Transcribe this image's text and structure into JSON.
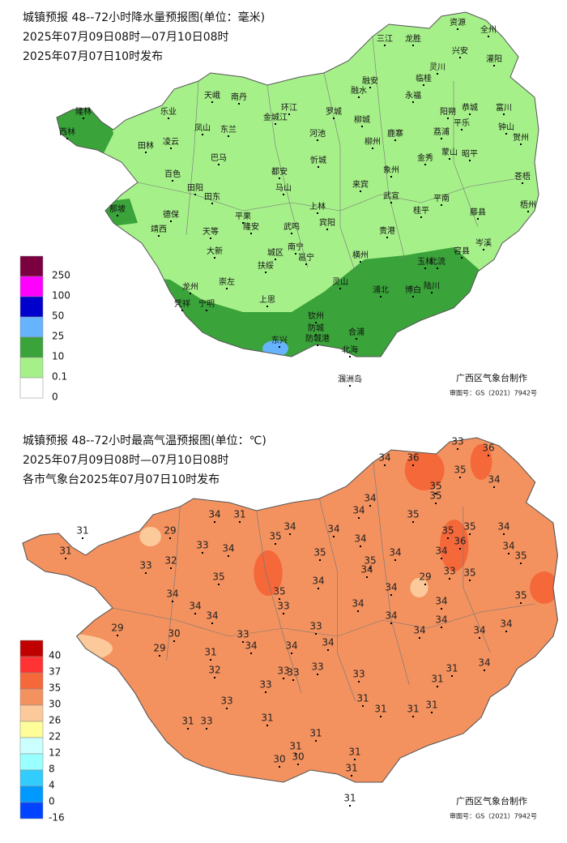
{
  "precip_map": {
    "title_lines": [
      "城镇预报 48--72小时降水量预报图(单位：毫米)",
      "2025年07月09日08时—07月10日08时",
      "2025年07月07日10时发布"
    ],
    "legend": [
      {
        "value": 250,
        "color": "#7a0040"
      },
      {
        "value": 100,
        "color": "#ff00ff"
      },
      {
        "value": 50,
        "color": "#0000cc"
      },
      {
        "value": 25,
        "color": "#66b3ff"
      },
      {
        "value": 10,
        "color": "#3aa33a"
      },
      {
        "value": 0.1,
        "color": "#a6f08a"
      },
      {
        "value": 0,
        "color": "#ffffff"
      }
    ],
    "cities": [
      "三江",
      "龙胜",
      "资源",
      "全州",
      "兴安",
      "灌阳",
      "灵川",
      "临桂",
      "融安",
      "融水",
      "永福",
      "罗城",
      "环江",
      "南丹",
      "天峨",
      "乐业",
      "隆林",
      "西林",
      "凤山",
      "东兰",
      "金城江",
      "河池",
      "柳城",
      "阳朔",
      "恭城",
      "富川",
      "平乐",
      "钟山",
      "贺州",
      "荔浦",
      "鹿寨",
      "柳州",
      "田林",
      "凌云",
      "巴马",
      "忻城",
      "象州",
      "金秀",
      "蒙山",
      "昭平",
      "百色",
      "都安",
      "马山",
      "来宾",
      "武宣",
      "平南",
      "藤县",
      "苍梧",
      "梧州",
      "田阳",
      "田东",
      "上林",
      "宾阳",
      "桂平",
      "那坡",
      "德保",
      "靖西",
      "平果",
      "隆安",
      "武鸣",
      "贵港",
      "岑溪",
      "天等",
      "大新",
      "南宁",
      "横州",
      "容县",
      "北流",
      "玉林",
      "邕宁",
      "扶绥",
      "城区",
      "崇左",
      "灵山",
      "浦北",
      "博白",
      "陆川",
      "龙州",
      "凭祥",
      "宁明",
      "上思",
      "钦州",
      "防城",
      "东兴",
      "防城港",
      "合浦",
      "北海",
      "涠洲岛"
    ],
    "credit": "广西区气象台制作",
    "approval": "审图号：GS（2021）7942号"
  },
  "temperature_map": {
    "title_lines": [
      "城镇预报 48--72小时最高气温预报图(单位：℃)",
      "2025年07月09日08时—07月10日08时",
      "各市气象台2025年07月07日10时发布"
    ],
    "legend": [
      {
        "value": 40,
        "color": "#c00000"
      },
      {
        "value": 37,
        "color": "#ff3333"
      },
      {
        "value": 35,
        "color": "#f4683a"
      },
      {
        "value": 30,
        "color": "#f4925f"
      },
      {
        "value": 26,
        "color": "#fcc99a"
      },
      {
        "value": 22,
        "color": "#fdfd99"
      },
      {
        "value": 12,
        "color": "#ccffff"
      },
      {
        "value": 8,
        "color": "#99ffff"
      },
      {
        "value": 4,
        "color": "#33ccff"
      },
      {
        "value": 0,
        "color": "#0099ff"
      },
      {
        "value": -16,
        "color": "#0044ff"
      }
    ],
    "labels": [
      33,
      36,
      34,
      36,
      35,
      34,
      35,
      35,
      34,
      34,
      35,
      34,
      31,
      34,
      34,
      34,
      35,
      35,
      34,
      31,
      29,
      36,
      35,
      31,
      33,
      34,
      35,
      34,
      34,
      34,
      35,
      33,
      32,
      35,
      35,
      34,
      29,
      33,
      35,
      35,
      34,
      34,
      34,
      33,
      34,
      34,
      35,
      34,
      34,
      33,
      34,
      34,
      34,
      29,
      30,
      33,
      34,
      34,
      34,
      34,
      34,
      29,
      31,
      33,
      33,
      32,
      33,
      33,
      31,
      31,
      34,
      33,
      33,
      31,
      31,
      31,
      31,
      31,
      33,
      31,
      31,
      31,
      30,
      30,
      31,
      31,
      31
    ],
    "credit": "广西区气象台制作",
    "approval": "审图号：GS（2021）7942号"
  }
}
